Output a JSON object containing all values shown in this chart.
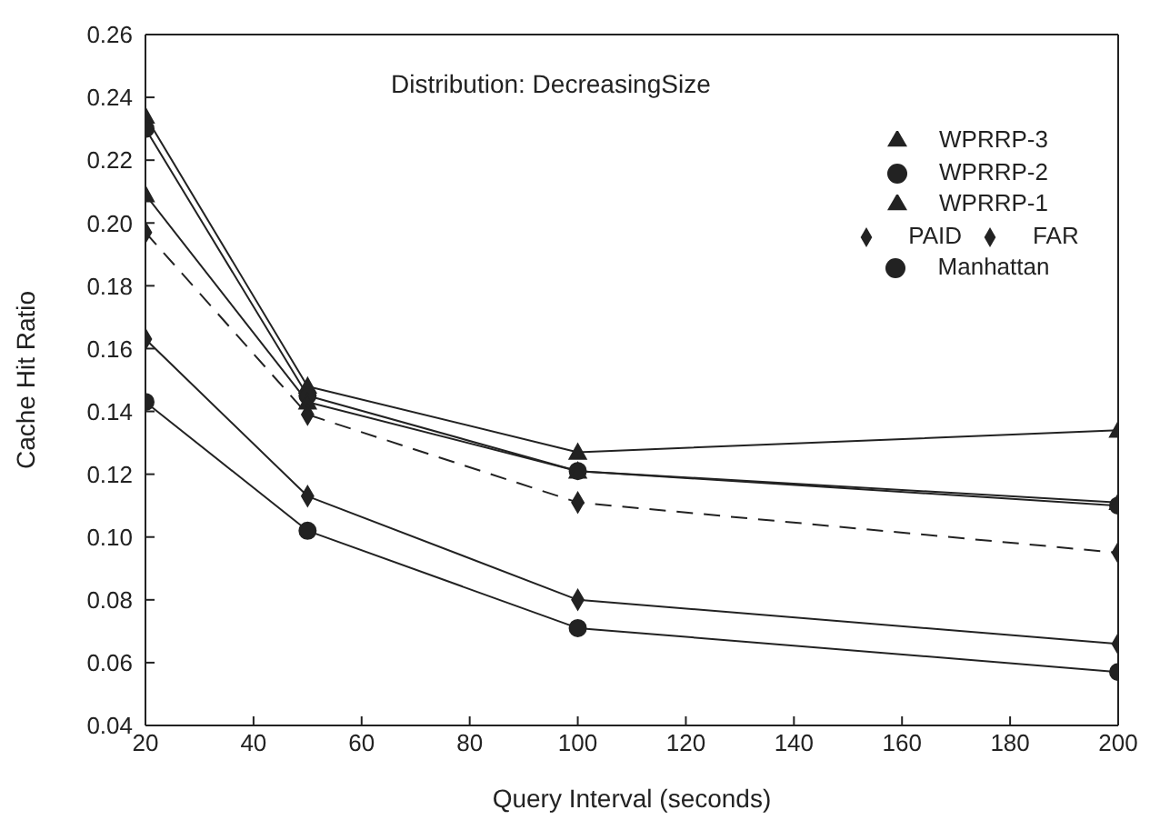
{
  "chart_data": {
    "type": "line",
    "title": "Distribution: DecreasingSize",
    "xlabel": "Query Interval (seconds)",
    "ylabel": "Cache Hit Ratio",
    "x": [
      20,
      50,
      100,
      200
    ],
    "series": [
      {
        "name": "WPRRP-3",
        "color": "#222222",
        "marker": "triangle",
        "line_style": "solid",
        "values": [
          0.234,
          0.148,
          0.127,
          0.134
        ]
      },
      {
        "name": "WPRRP-2",
        "color": "#222222",
        "marker": "circle",
        "line_style": "solid",
        "values": [
          0.23,
          0.145,
          0.121,
          0.11
        ]
      },
      {
        "name": "WPRRP-1",
        "color": "#222222",
        "marker": "triangle",
        "line_style": "solid",
        "values": [
          0.209,
          0.143,
          0.121,
          0.111
        ]
      },
      {
        "name": "PAID",
        "color": "#222222",
        "marker": "diamond",
        "line_style": "dashed",
        "values": [
          0.197,
          0.139,
          0.111,
          0.095
        ]
      },
      {
        "name": "FAR",
        "color": "#222222",
        "marker": "diamond",
        "line_style": "solid",
        "values": [
          0.163,
          0.113,
          0.08,
          0.066
        ]
      },
      {
        "name": "Manhattan",
        "color": "#222222",
        "marker": "circle",
        "line_style": "solid",
        "values": [
          0.143,
          0.102,
          0.071,
          0.057
        ]
      }
    ],
    "xlim": [
      20,
      200
    ],
    "xticks": [
      20,
      40,
      60,
      80,
      100,
      120,
      140,
      160,
      180,
      200
    ],
    "ylim": [
      0.04,
      0.26
    ],
    "yticks": [
      {
        "value": 0.04,
        "label": "0.04"
      },
      {
        "value": 0.06,
        "label": "0.06"
      },
      {
        "value": 0.08,
        "label": "0.08"
      },
      {
        "value": 0.1,
        "label": "0.10"
      },
      {
        "value": 0.12,
        "label": "0.12"
      },
      {
        "value": 0.14,
        "label": "0.14"
      },
      {
        "value": 0.16,
        "label": "0.16"
      },
      {
        "value": 0.18,
        "label": "0.18"
      },
      {
        "value": 0.2,
        "label": "0.20"
      },
      {
        "value": 0.22,
        "label": "0.22"
      },
      {
        "value": 0.24,
        "label": "0.24"
      },
      {
        "value": 0.26,
        "label": "0.26"
      }
    ],
    "grid": false,
    "legend": "top right"
  }
}
